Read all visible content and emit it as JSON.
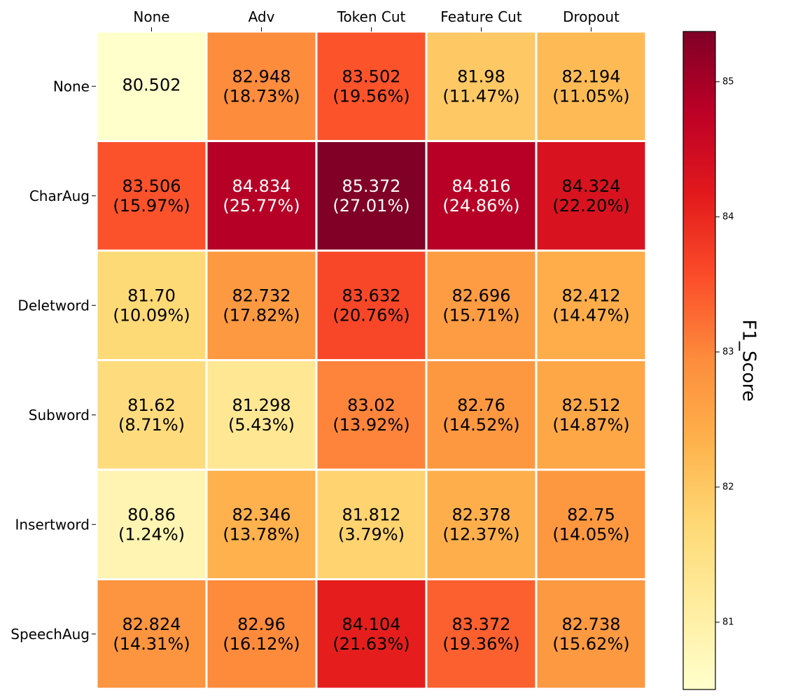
{
  "chart_data": {
    "type": "heatmap",
    "title": "",
    "x_labels": [
      "None",
      "Adv",
      "Token Cut",
      "Feature Cut",
      "Dropout"
    ],
    "y_labels": [
      "None",
      "CharAug",
      "Deletword",
      "Subword",
      "Insertword",
      "SpeechAug"
    ],
    "values": [
      [
        80.502,
        82.948,
        83.502,
        81.98,
        82.194
      ],
      [
        83.506,
        84.834,
        85.372,
        84.816,
        84.324
      ],
      [
        81.7,
        82.732,
        83.632,
        82.696,
        82.412
      ],
      [
        81.62,
        81.298,
        83.02,
        82.76,
        82.512
      ],
      [
        80.86,
        82.346,
        81.812,
        82.378,
        82.75
      ],
      [
        82.824,
        82.96,
        84.104,
        83.372,
        82.738
      ]
    ],
    "cell_text": [
      [
        "80.502",
        "82.948",
        "83.502",
        "81.98",
        "82.194"
      ],
      [
        "83.506",
        "84.834",
        "85.372",
        "84.816",
        "84.324"
      ],
      [
        "81.70",
        "82.732",
        "83.632",
        "82.696",
        "82.412"
      ],
      [
        "81.62",
        "81.298",
        "83.02",
        "82.76",
        "82.512"
      ],
      [
        "80.86",
        "82.346",
        "81.812",
        "82.378",
        "82.75"
      ],
      [
        "82.824",
        "82.96",
        "84.104",
        "83.372",
        "82.738"
      ]
    ],
    "improvement": [
      [
        "",
        "(18.73%)",
        "(19.56%)",
        "(11.47%)",
        "(11.05%)"
      ],
      [
        "(15.97%)",
        "(25.77%)",
        "(27.01%)",
        "(24.86%)",
        "(22.20%)"
      ],
      [
        "(10.09%)",
        "(17.82%)",
        "(20.76%)",
        "(15.71%)",
        "(14.47%)"
      ],
      [
        "(8.71%)",
        "(5.43%)",
        "(13.92%)",
        "(14.52%)",
        "(14.87%)"
      ],
      [
        "(1.24%)",
        "(13.78%)",
        "(3.79%)",
        "(12.37%)",
        "(14.05%)"
      ],
      [
        "(14.31%)",
        "(16.12%)",
        "(21.63%)",
        "(19.36%)",
        "(15.62%)"
      ]
    ],
    "colorbar": {
      "label": "F1_Score",
      "vmin": 80.502,
      "vmax": 85.372,
      "ticks": [
        81,
        82,
        83,
        84,
        85
      ],
      "colormap": "YlOrRd",
      "stops": [
        "#ffffcc",
        "#ffeda0",
        "#fed976",
        "#feb24c",
        "#fd8d3c",
        "#fc4e2a",
        "#e31a1c",
        "#bd0026",
        "#800026"
      ]
    },
    "x_axis_position": "top",
    "grid": false
  }
}
